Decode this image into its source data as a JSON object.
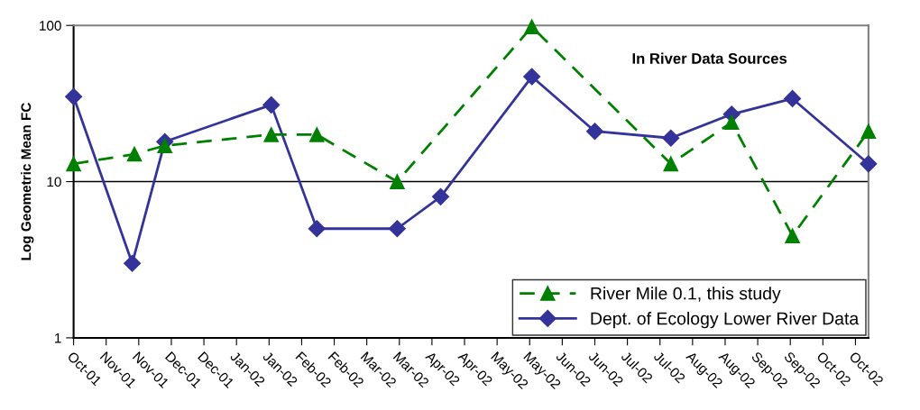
{
  "chart_data": {
    "type": "line",
    "title": "In River Data Sources",
    "ylabel": "Log Geometric Mean FC",
    "log": "y",
    "grid": "y",
    "legend": "bottom right",
    "xlim": [
      "2001-10-25",
      "2002-10-26"
    ],
    "xticks": [
      {
        "value": "2001-10-25",
        "label": "Oct-01"
      },
      {
        "value": "2001-11-09",
        "label": "Nov-01"
      },
      {
        "value": "2001-11-24",
        "label": "Nov-01"
      },
      {
        "value": "2001-12-09",
        "label": "Dec-01"
      },
      {
        "value": "2001-12-24",
        "label": "Dec-01"
      },
      {
        "value": "2002-01-08",
        "label": "Jan-02"
      },
      {
        "value": "2002-01-23",
        "label": "Jan-02"
      },
      {
        "value": "2002-02-07",
        "label": "Feb-02"
      },
      {
        "value": "2002-02-22",
        "label": "Feb-02"
      },
      {
        "value": "2002-03-09",
        "label": "Mar-02"
      },
      {
        "value": "2002-03-24",
        "label": "Mar-02"
      },
      {
        "value": "2002-04-08",
        "label": "Apr-02"
      },
      {
        "value": "2002-04-23",
        "label": "Apr-02"
      },
      {
        "value": "2002-05-08",
        "label": "May-02"
      },
      {
        "value": "2002-05-23",
        "label": "May-02"
      },
      {
        "value": "2002-06-07",
        "label": "Jun-02"
      },
      {
        "value": "2002-06-22",
        "label": "Jun-02"
      },
      {
        "value": "2002-07-07",
        "label": "Jul-02"
      },
      {
        "value": "2002-07-22",
        "label": "Jul-02"
      },
      {
        "value": "2002-08-06",
        "label": "Aug-02"
      },
      {
        "value": "2002-08-21",
        "label": "Aug-02"
      },
      {
        "value": "2002-09-05",
        "label": "Sep-02"
      },
      {
        "value": "2002-09-20",
        "label": "Sep-02"
      },
      {
        "value": "2002-10-05",
        "label": "Oct-02"
      },
      {
        "value": "2002-10-20",
        "label": "Oct-02"
      }
    ],
    "ylim": [
      1,
      100
    ],
    "yticks": [
      1,
      10,
      100
    ],
    "series": [
      {
        "name": "River Mile 0.1, this study",
        "color": "#008000",
        "marker": "triangle",
        "line_style": "dashed",
        "x": [
          "2001-10-25",
          "2001-11-22",
          "2001-12-06",
          "2002-01-24",
          "2002-02-14",
          "2002-03-23",
          "2002-05-24",
          "2002-07-27",
          "2002-08-24",
          "2002-09-21",
          "2002-10-26"
        ],
        "values": [
          13,
          15,
          17,
          20,
          20,
          10,
          98,
          13,
          24,
          4.5,
          21
        ]
      },
      {
        "name": "Dept. of Ecology Lower River Data",
        "color": "#333399",
        "marker": "diamond",
        "line_style": "solid",
        "x": [
          "2001-10-25",
          "2001-11-21",
          "2001-12-06",
          "2002-01-24",
          "2002-02-14",
          "2002-03-23",
          "2002-04-12",
          "2002-05-24",
          "2002-06-22",
          "2002-07-27",
          "2002-08-24",
          "2002-09-21",
          "2002-10-26"
        ],
        "values": [
          35,
          3,
          18,
          31,
          5,
          5,
          8,
          47,
          21,
          19,
          27,
          34,
          13
        ]
      }
    ]
  }
}
